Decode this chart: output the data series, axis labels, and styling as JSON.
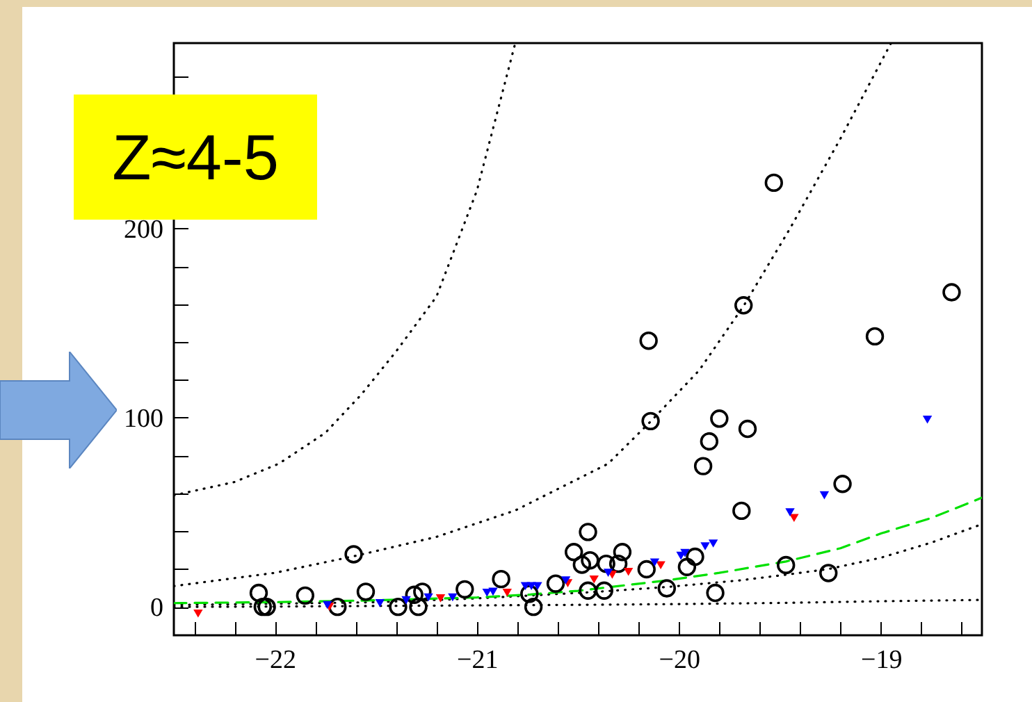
{
  "chart_data": {
    "type": "scatter",
    "annotations": [
      "Z≈4-5"
    ],
    "xlim": [
      -22.5,
      -18.5
    ],
    "ylim": [
      -15,
      298
    ],
    "xticks": [
      -22,
      -21,
      -20,
      -19,
      {
        "value": -22.4,
        "label": null
      },
      {
        "value": -22.2,
        "label": null
      },
      {
        "value": -21.8,
        "label": null
      },
      {
        "value": -21.6,
        "label": null
      },
      {
        "value": -21.4,
        "label": null
      },
      {
        "value": -21.2,
        "label": null
      },
      {
        "value": -20.8,
        "label": null
      },
      {
        "value": -20.6,
        "label": null
      },
      {
        "value": -20.4,
        "label": null
      },
      {
        "value": -20.2,
        "label": null
      },
      {
        "value": -19.8,
        "label": null
      },
      {
        "value": -19.6,
        "label": null
      },
      {
        "value": -19.4,
        "label": null
      },
      {
        "value": -19.2,
        "label": null
      },
      {
        "value": -18.8,
        "label": null
      },
      {
        "value": -18.6,
        "label": null
      }
    ],
    "yticks": [
      0,
      100,
      200,
      {
        "value": 20,
        "label": null
      },
      {
        "value": 40,
        "label": null
      },
      {
        "value": 60,
        "label": null
      },
      {
        "value": 80,
        "label": null
      },
      {
        "value": 120,
        "label": null
      },
      {
        "value": 140,
        "label": null
      },
      {
        "value": 160,
        "label": null
      },
      {
        "value": 180,
        "label": null
      },
      {
        "value": 220,
        "label": null
      },
      {
        "value": 240,
        "label": null
      },
      {
        "value": 260,
        "label": null
      },
      {
        "value": 280,
        "label": null
      }
    ],
    "series": [
      {
        "type": "line",
        "color": "#000000",
        "line_style": "dotted",
        "x": [
          -22.5,
          -22.2,
          -21.98,
          -21.75,
          -21.57,
          -21.4,
          -21.2,
          -21.0,
          -20.81
        ],
        "values": [
          59,
          66,
          75.7,
          92,
          112.5,
          135,
          164,
          220,
          298
        ]
      },
      {
        "type": "line",
        "color": "#000000",
        "line_style": "dotted",
        "x": [
          -22.5,
          -22.0,
          -21.6,
          -21.2,
          -20.81,
          -20.35,
          -20.14,
          -19.9,
          -19.68,
          -19.45,
          -19.2,
          -18.95
        ],
        "values": [
          11,
          18,
          27,
          37,
          51,
          75.7,
          98,
          125,
          159,
          200,
          247.6,
          298
        ]
      },
      {
        "type": "line",
        "color": "#000000",
        "line_style": "dotted",
        "x": [
          -22.5,
          -22.0,
          -21.5,
          -21.0,
          -20.74,
          -20.4,
          -20.06,
          -19.7,
          -19.47,
          -19.26,
          -19.0,
          -18.75,
          -18.5
        ],
        "values": [
          1,
          1.7,
          2.5,
          4.5,
          6,
          8,
          10.5,
          14,
          17,
          20,
          26,
          34,
          43.7
        ]
      },
      {
        "type": "line",
        "color": "#000000",
        "line_style": "dotted",
        "x": [
          -22.5,
          -22.0,
          -21.5,
          -21.0,
          -20.5,
          -20.0,
          -19.5,
          -19.0,
          -18.5
        ],
        "values": [
          0,
          0.2,
          0.5,
          0.8,
          1.1,
          1.5,
          2.1,
          3,
          3.7
        ]
      },
      {
        "type": "line",
        "color": "#00e000",
        "line_style": "dashed",
        "x": [
          -22.5,
          -22.0,
          -21.5,
          -21.0,
          -20.74,
          -20.5,
          -20.06,
          -19.8,
          -19.47,
          -19.2,
          -19.0,
          -18.75,
          -18.5
        ],
        "values": [
          2,
          2.5,
          3.5,
          5,
          6.5,
          8.5,
          14,
          18,
          24,
          31,
          38.8,
          47,
          57.7
        ]
      },
      {
        "color": "#000000",
        "marker": "circle",
        "x": [
          -21.61,
          -22.08,
          -22.06,
          -22.04,
          -21.85,
          -21.69,
          -21.55,
          -21.39,
          -21.31,
          -21.27,
          -21.29,
          -21.06,
          -20.88,
          -20.61,
          -20.72,
          -20.74,
          -20.45,
          -20.52,
          -20.48,
          -20.44,
          -20.45,
          -20.37,
          -20.36,
          -20.3,
          -20.28,
          -20.16,
          -20.06,
          -20.15,
          -20.14,
          -19.96,
          -19.92,
          -19.82,
          -19.88,
          -19.85,
          -19.8,
          -19.66,
          -19.69,
          -19.53,
          -19.68,
          -19.47,
          -19.26,
          -19.19,
          -19.03,
          -18.65
        ],
        "values": [
          27.8,
          7.4,
          0,
          0,
          6,
          0,
          8,
          0,
          6.4,
          8,
          0,
          9.3,
          14.7,
          12.3,
          0,
          6.9,
          39.6,
          29,
          22.3,
          24.6,
          8.6,
          8.6,
          22.8,
          22.8,
          29,
          19.9,
          9.8,
          140.7,
          98.2,
          21.1,
          26.5,
          7.4,
          74.4,
          87.5,
          99.5,
          94.1,
          50.8,
          224.2,
          159.4,
          22.1,
          17.9,
          65,
          143,
          166.3
        ]
      },
      {
        "color": "#ff0000",
        "marker": "triangle",
        "x": [
          -22.38,
          -21.73,
          -21.18,
          -20.85,
          -20.55,
          -20.42,
          -20.33,
          -20.25,
          -20.09,
          -19.43
        ],
        "values": [
          -3.5,
          0,
          4.5,
          7.5,
          12.5,
          14.5,
          17,
          18.5,
          22,
          47
        ]
      },
      {
        "color": "#0000ff",
        "marker": "triangle",
        "x": [
          -21.74,
          -21.48,
          -21.35,
          -21.24,
          -21.12,
          -20.95,
          -20.92,
          -20.76,
          -20.73,
          -20.7,
          -20.56,
          -20.35,
          -20.12,
          -19.99,
          -19.97,
          -19.87,
          -19.83,
          -19.45,
          -19.28,
          -18.77
        ],
        "values": [
          1,
          2,
          3.5,
          5,
          5,
          7.5,
          8,
          11,
          11,
          11,
          14,
          18,
          23.5,
          27,
          28.5,
          32,
          33.5,
          50,
          59,
          99
        ]
      }
    ]
  }
}
